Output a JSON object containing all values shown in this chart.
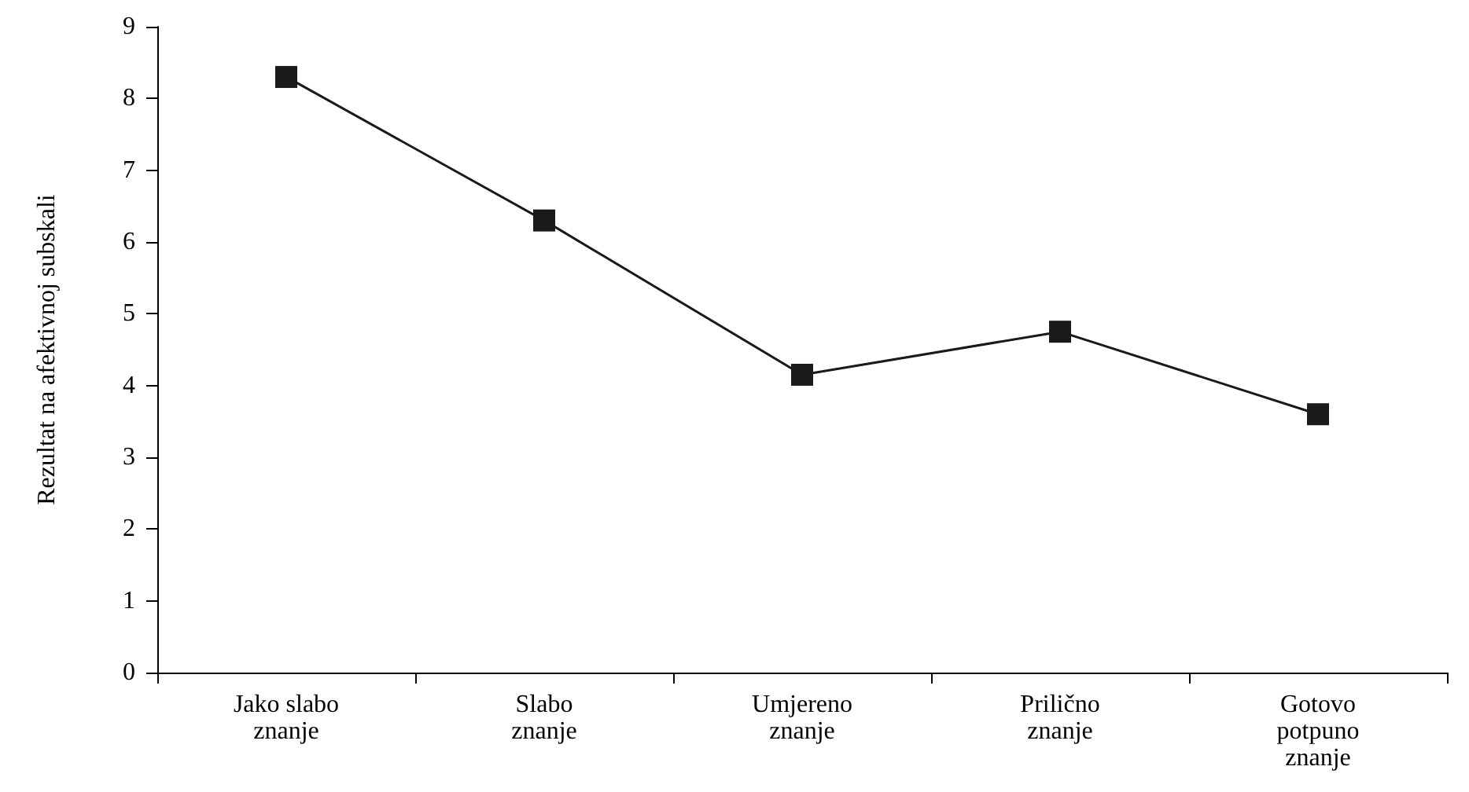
{
  "chart_data": {
    "type": "line",
    "ylabel": "Rezultat na afektivnoj subskali",
    "categories": [
      "Jako slabo\nznanje",
      "Slabo\nznanje",
      "Umjereno\nznanje",
      "Prilično\nznanje",
      "Gotovo\npotpuno\nznanje"
    ],
    "series": [
      {
        "color": "#1a1a1a",
        "values": [
          8.3,
          6.3,
          4.15,
          4.75,
          3.6
        ]
      }
    ],
    "ylim": [
      0,
      9
    ],
    "yticks": [
      0,
      1,
      2,
      3,
      4,
      5,
      6,
      7,
      8,
      9
    ],
    "grid": false,
    "marker": "square",
    "line_style": "solid"
  }
}
